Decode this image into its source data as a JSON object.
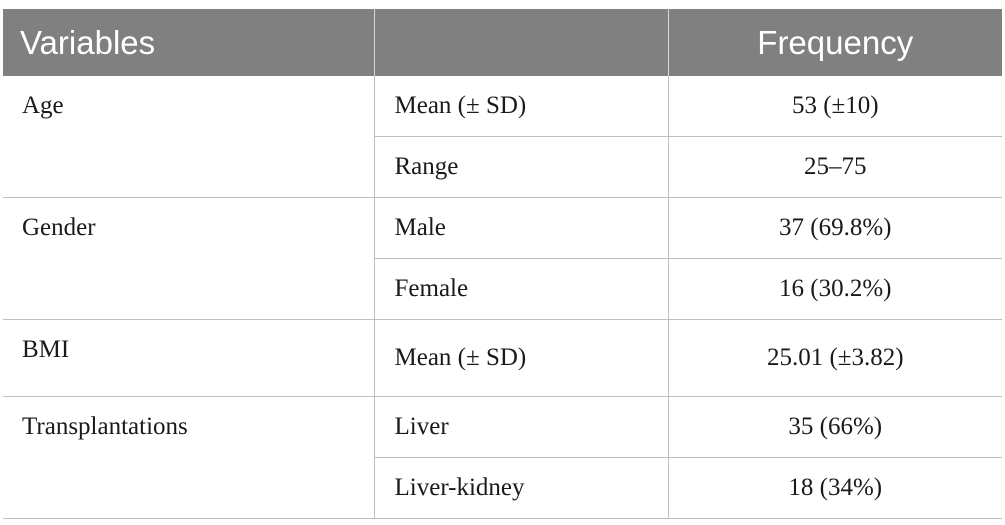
{
  "header": {
    "variables": "Variables",
    "frequency": "Frequency"
  },
  "rows": [
    {
      "variable": "Age",
      "items": [
        {
          "sub": "Mean (± SD)",
          "freq": "53 (±10)"
        },
        {
          "sub": "Range",
          "freq": "25–75"
        }
      ]
    },
    {
      "variable": "Gender",
      "items": [
        {
          "sub": "Male",
          "freq": "37 (69.8%)"
        },
        {
          "sub": "Female",
          "freq": "16 (30.2%)"
        }
      ]
    },
    {
      "variable": "BMI",
      "items": [
        {
          "sub": "Mean (± SD)",
          "freq": "25.01 (±3.82)"
        }
      ]
    },
    {
      "variable": "Transplantations",
      "items": [
        {
          "sub": "Liver",
          "freq": "35 (66%)"
        },
        {
          "sub": "Liver-kidney",
          "freq": "18 (34%)"
        }
      ]
    }
  ]
}
